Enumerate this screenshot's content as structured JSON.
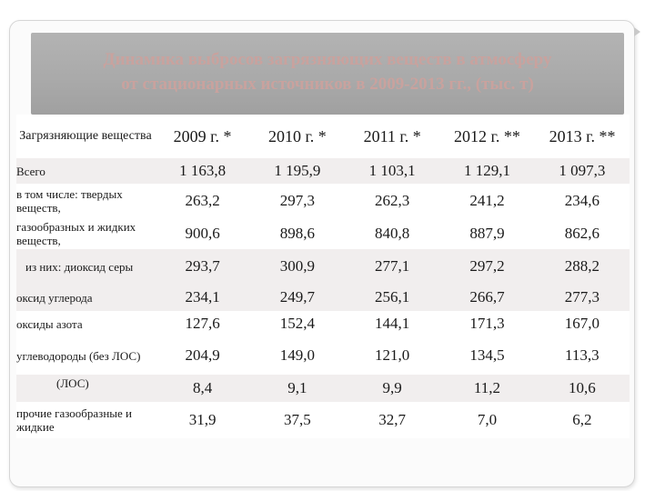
{
  "slide": {
    "title_line1": "Динамика выбросов загрязняющих веществ в атмосферу",
    "title_line2": "от стационарных источников в 2009-2013 гг., (тыс. т)"
  },
  "table": {
    "header_label": "Загрязняющие вещества",
    "years": [
      "2009 г. *",
      "2010 г. *",
      "2011 г. *",
      "2012 г. **",
      "2013 г. **"
    ],
    "rows": [
      {
        "label": "Всего",
        "values": [
          "1 163,8",
          "1 195,9",
          "1 103,1",
          "1 129,1",
          "1 097,3"
        ]
      },
      {
        "label": "в том числе: твердых веществ,",
        "values": [
          "263,2",
          "297,3",
          "262,3",
          "241,2",
          "234,6"
        ]
      },
      {
        "label": "газообразных и жидких веществ,",
        "values": [
          "900,6",
          "898,6",
          "840,8",
          "887,9",
          "862,6"
        ]
      },
      {
        "label": "из них: диоксид серы",
        "values": [
          "293,7",
          "300,9",
          "277,1",
          "297,2",
          "288,2"
        ]
      },
      {
        "label": "оксид углерода",
        "values": [
          "234,1",
          "249,7",
          "256,1",
          "266,7",
          "277,3"
        ]
      },
      {
        "label": "оксиды азота",
        "values": [
          "127,6",
          "152,4",
          "144,1",
          "171,3",
          "167,0"
        ]
      },
      {
        "label": "углеводороды (без ЛОС)",
        "values": [
          "204,9",
          "149,0",
          "121,0",
          "134,5",
          "113,3"
        ]
      },
      {
        "label": "(ЛОС)",
        "values": [
          "8,4",
          "9,1",
          "9,9",
          "11,2",
          "10,6"
        ]
      },
      {
        "label": "прочие газообразные и жидкие",
        "values": [
          "31,9",
          "37,5",
          "32,7",
          "7,0",
          "6,2"
        ]
      }
    ]
  }
}
